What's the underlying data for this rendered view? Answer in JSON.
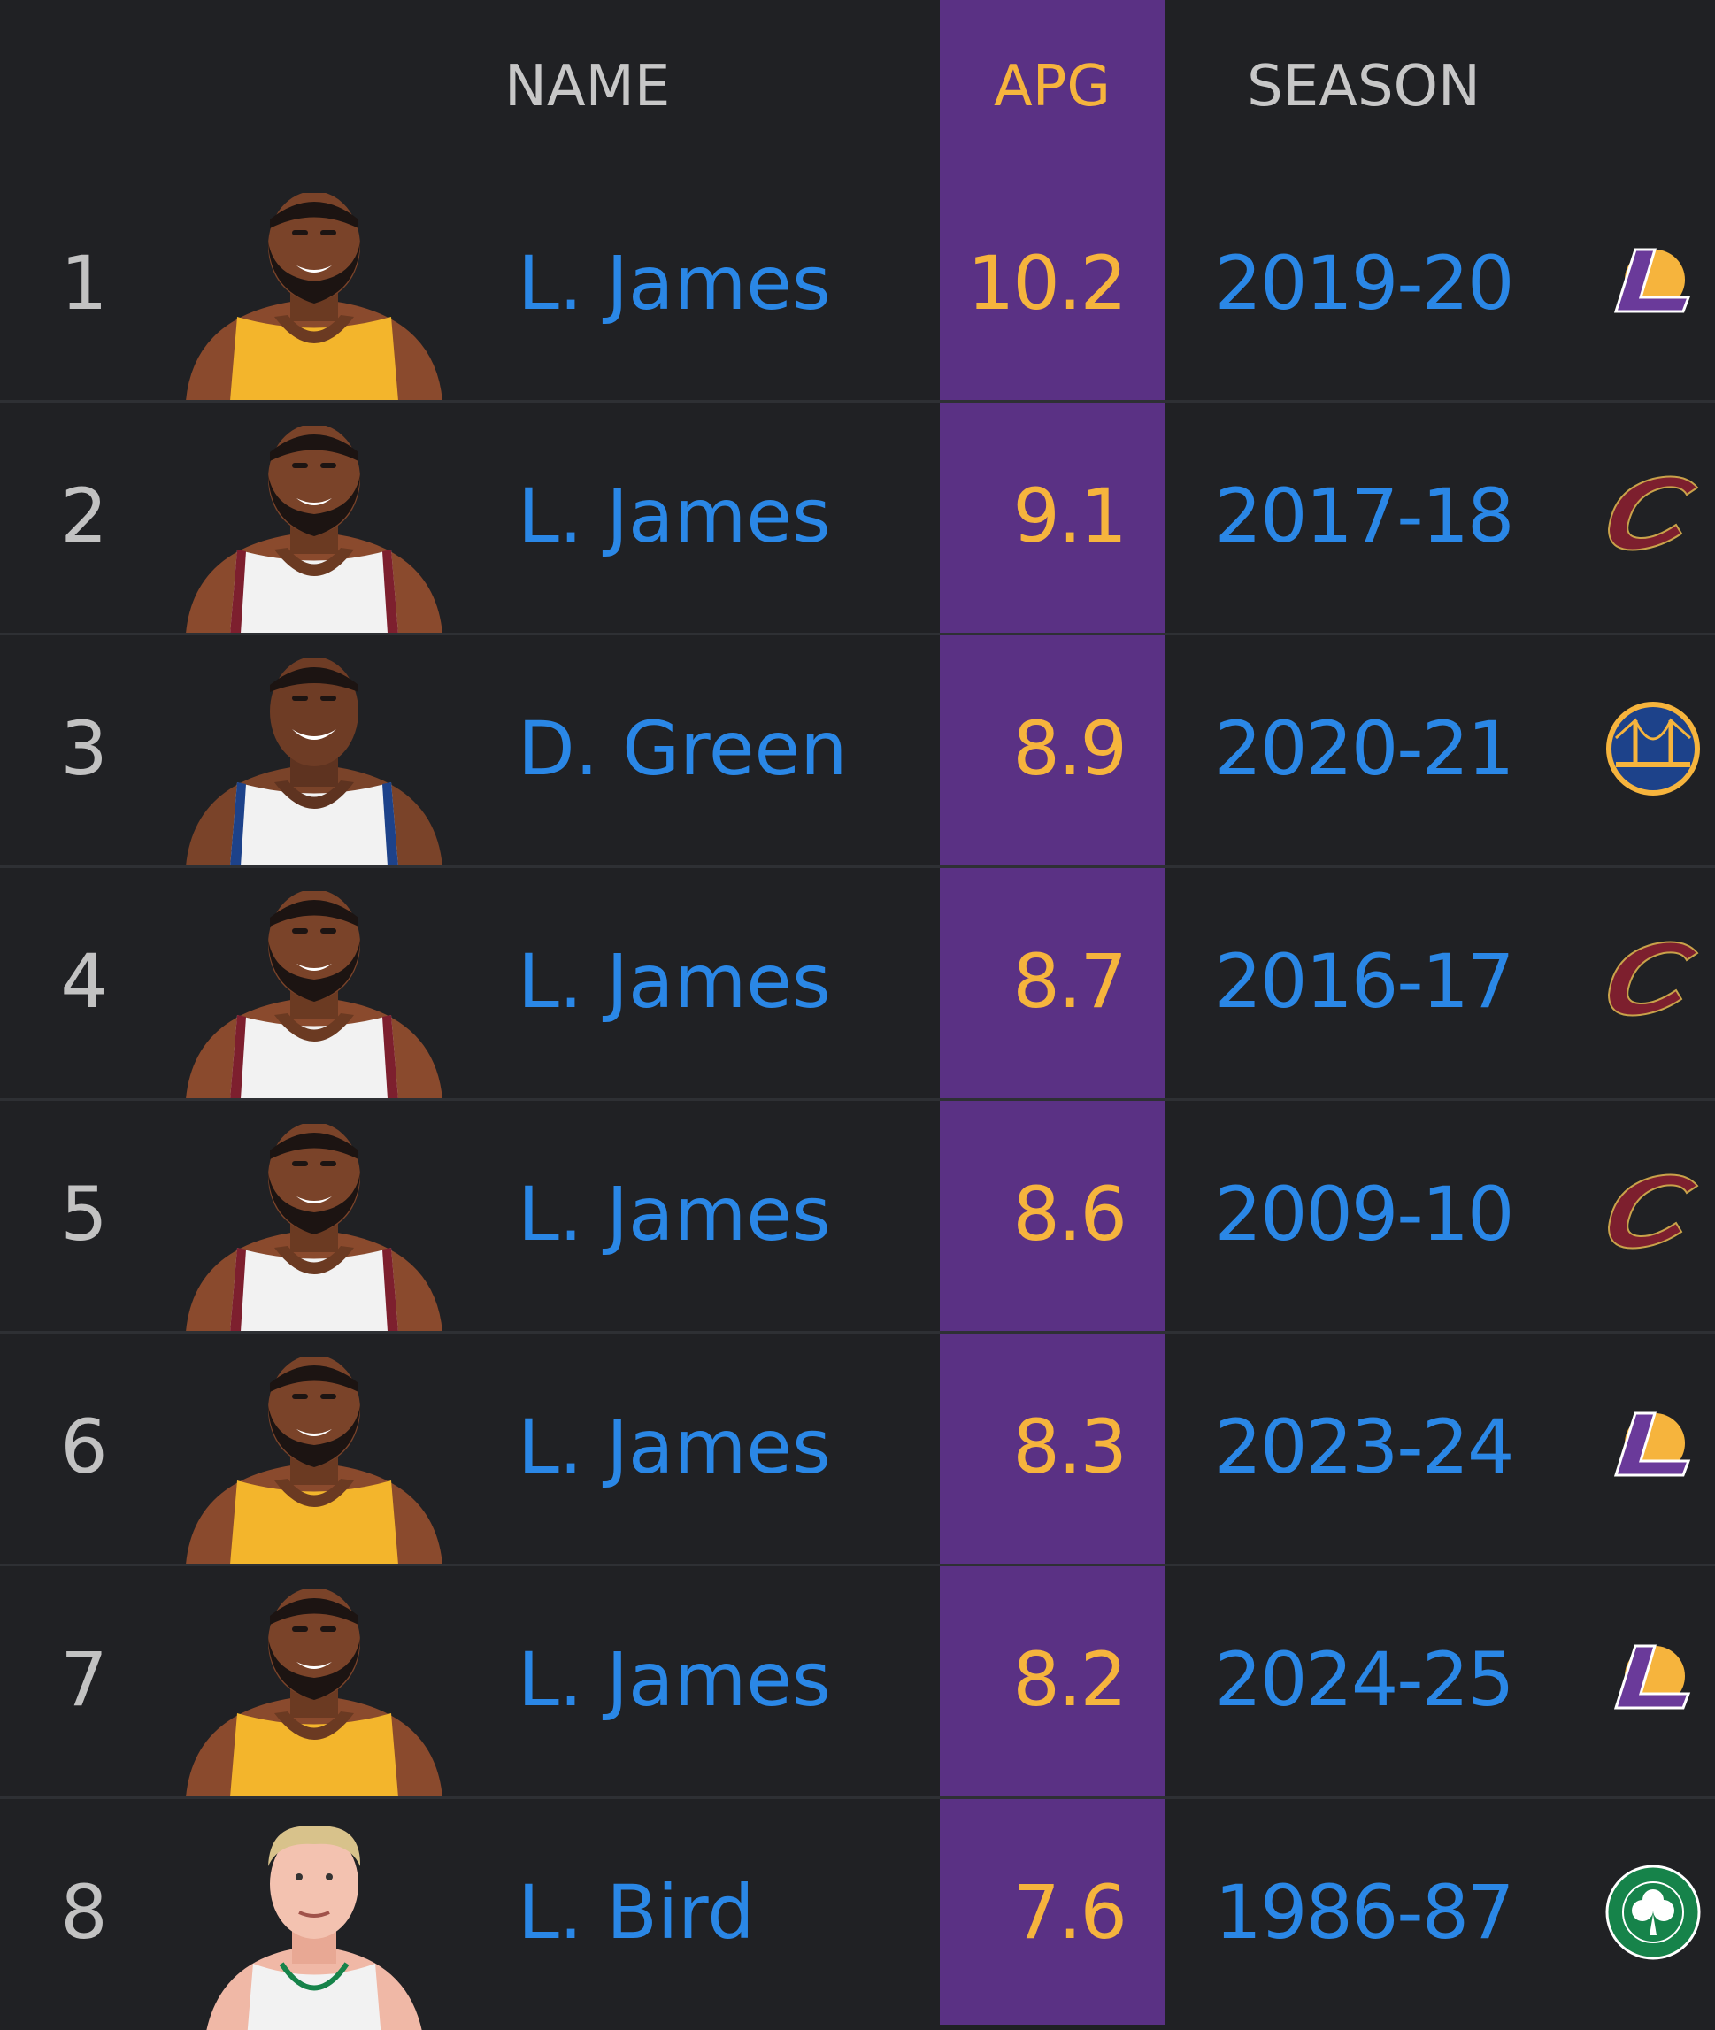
{
  "header": {
    "name": "NAME",
    "apg": "APG",
    "season": "SEASON"
  },
  "colors": {
    "apg_column": "#5a3184",
    "apg_text": "#f6b43d",
    "link_text": "#2a87e6",
    "background": "#202124"
  },
  "rows": [
    {
      "rank": "1",
      "name": "L. James",
      "apg": "10.2",
      "season": "2019-20",
      "team": "lakers-logo"
    },
    {
      "rank": "2",
      "name": "L. James",
      "apg": "9.1",
      "season": "2017-18",
      "team": "cavaliers-logo"
    },
    {
      "rank": "3",
      "name": "D. Green",
      "apg": "8.9",
      "season": "2020-21",
      "team": "warriors-logo"
    },
    {
      "rank": "4",
      "name": "L. James",
      "apg": "8.7",
      "season": "2016-17",
      "team": "cavaliers-logo"
    },
    {
      "rank": "5",
      "name": "L. James",
      "apg": "8.6",
      "season": "2009-10",
      "team": "cavaliers-logo"
    },
    {
      "rank": "6",
      "name": "L. James",
      "apg": "8.3",
      "season": "2023-24",
      "team": "lakers-logo"
    },
    {
      "rank": "7",
      "name": "L. James",
      "apg": "8.2",
      "season": "2024-25",
      "team": "lakers-logo"
    },
    {
      "rank": "8",
      "name": "L. Bird",
      "apg": "7.6",
      "season": "1986-87",
      "team": "celtics-logo"
    }
  ]
}
